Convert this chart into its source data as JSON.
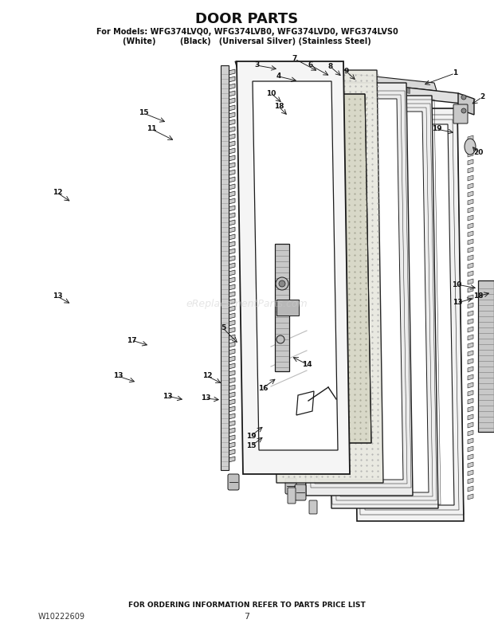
{
  "title": "DOOR PARTS",
  "subtitle_line1": "For Models: WFG374LVQ0, WFG374LVB0, WFG374LVD0, WFG374LVS0",
  "subtitle_line2": "(White)         (Black)   (Universal Silver) (Stainless Steel)",
  "footer_center": "FOR ORDERING INFORMATION REFER TO PARTS PRICE LIST",
  "footer_left": "W10222609",
  "footer_page": "7",
  "bg_color": "#ffffff",
  "line_color": "#1a1a1a",
  "watermark": "eReplacementParts.com"
}
